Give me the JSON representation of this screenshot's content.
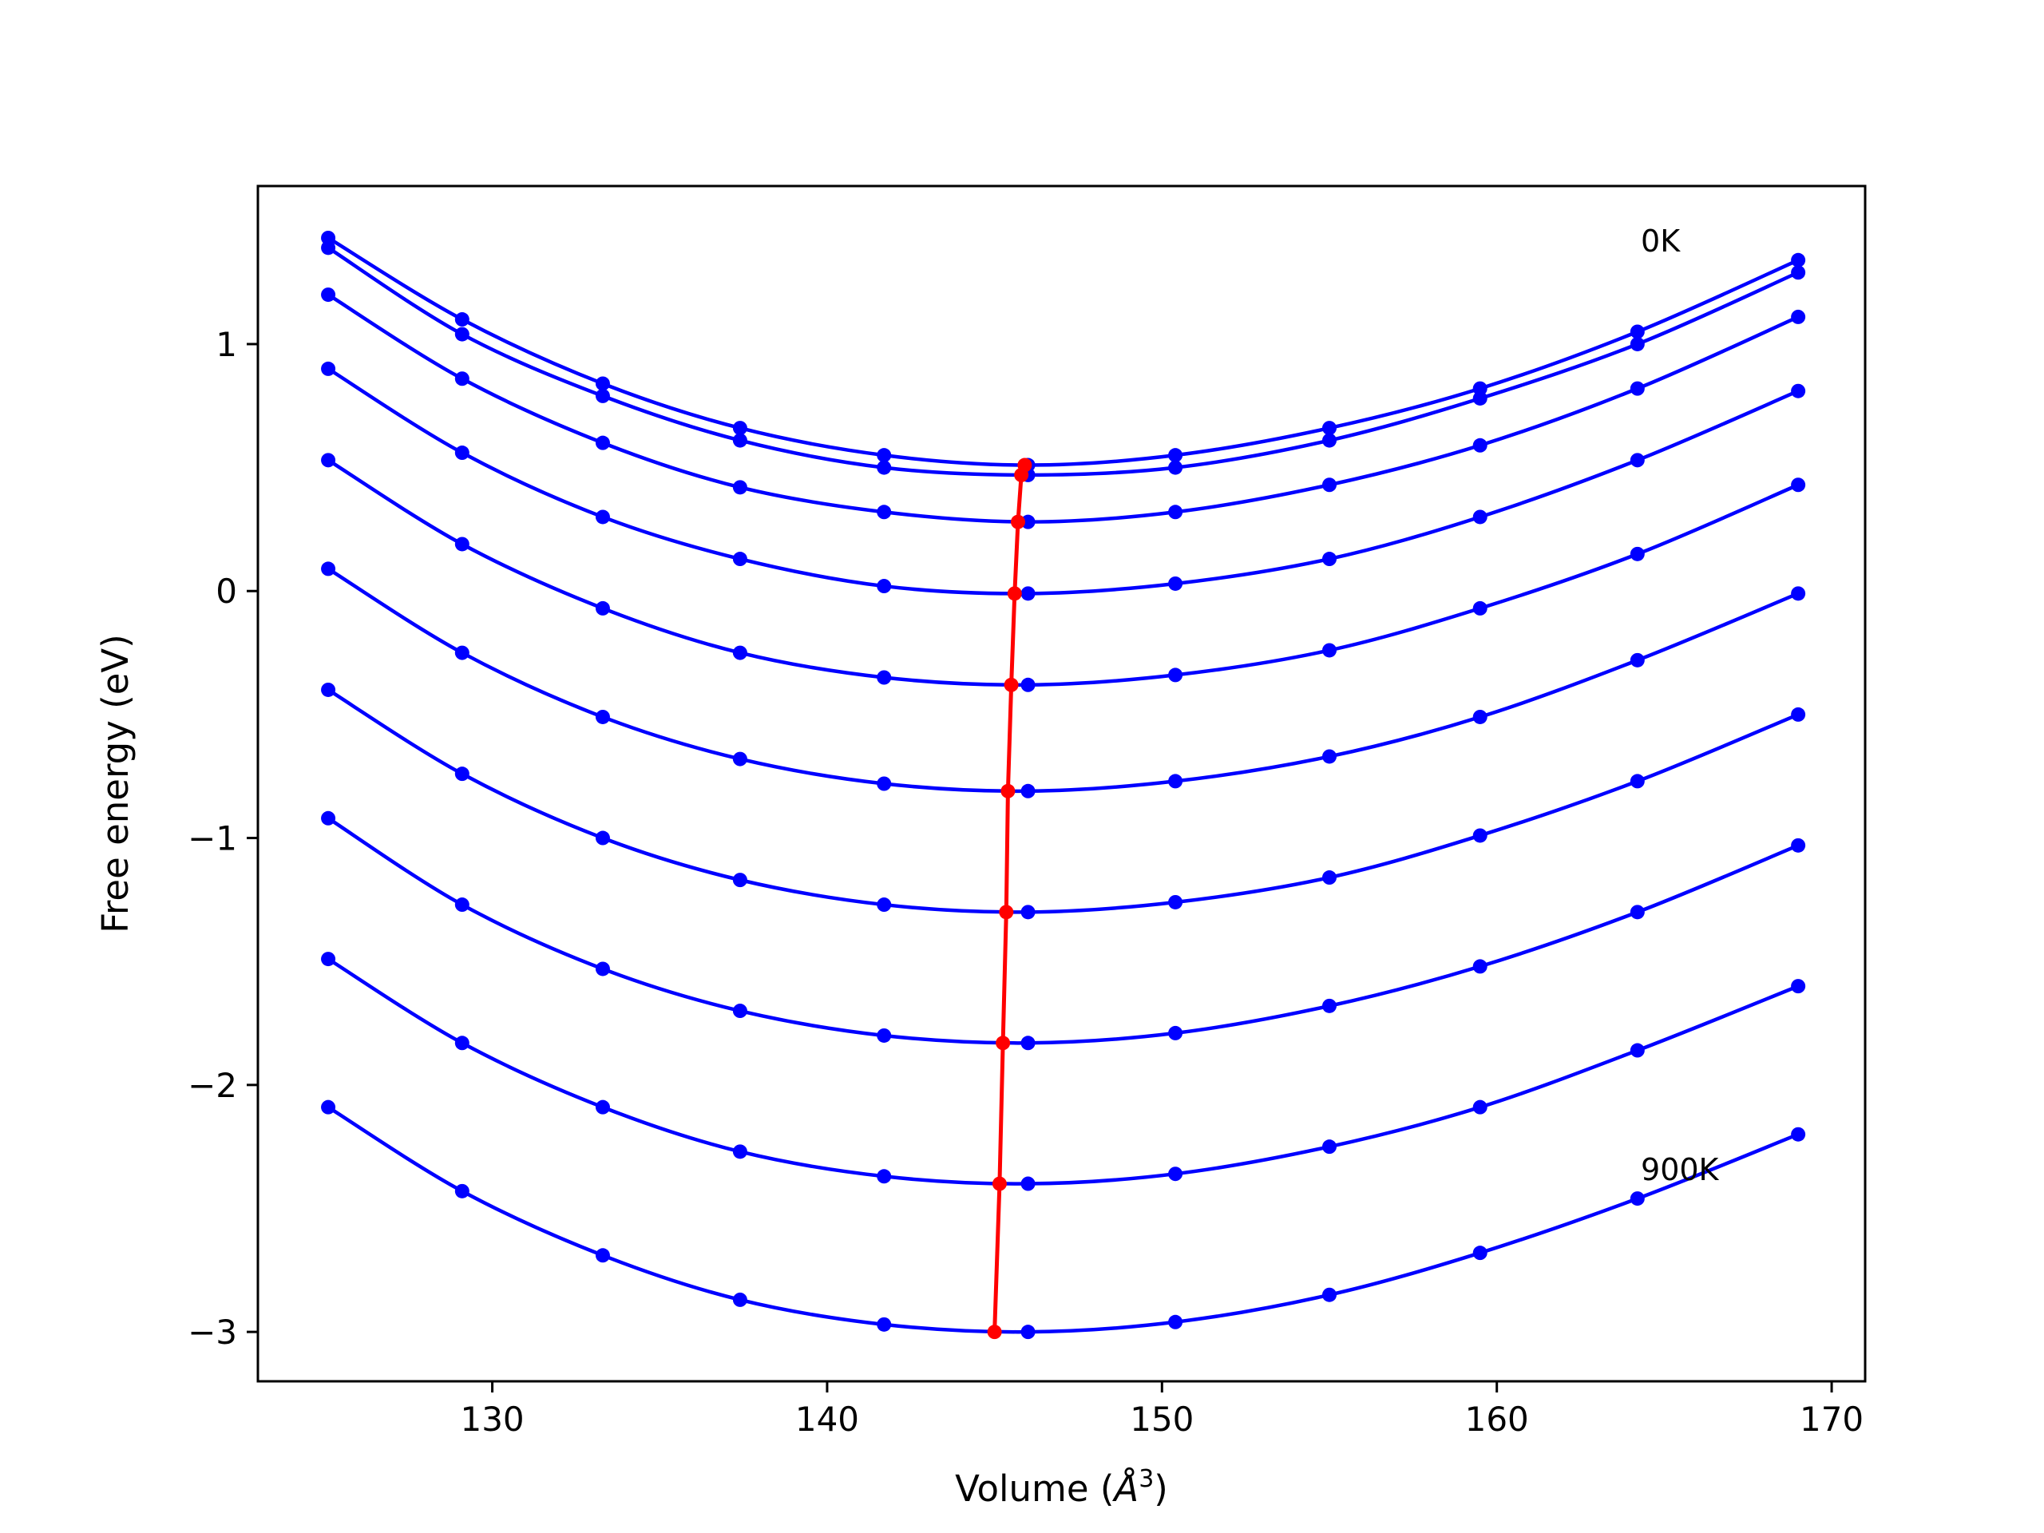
{
  "chart_data": {
    "type": "line",
    "title": "",
    "xlabel": "Volume (",
    "xlabel_unit": "Å",
    "xlabel_exp": "3",
    "xlabel_close": ")",
    "ylabel": "Free energy (eV)",
    "xlim": [
      123,
      171
    ],
    "ylim": [
      -3.2,
      1.64
    ],
    "xticks": [
      130,
      140,
      150,
      160,
      170
    ],
    "yticks": [
      1,
      0,
      -1,
      -2,
      -3
    ],
    "ytick_labels": [
      "1",
      "0",
      "−1",
      "−2",
      "−3"
    ],
    "grid": false,
    "legend": "none",
    "x": [
      125.1,
      129.1,
      133.3,
      137.4,
      141.7,
      146.0,
      150.4,
      155.0,
      159.5,
      164.2,
      169.0
    ],
    "series": [
      {
        "color": "#0000ff",
        "values": [
          1.43,
          1.1,
          0.84,
          0.66,
          0.55,
          0.51,
          0.55,
          0.66,
          0.82,
          1.05,
          1.34
        ]
      },
      {
        "color": "#0000ff",
        "values": [
          1.39,
          1.04,
          0.79,
          0.61,
          0.5,
          0.47,
          0.5,
          0.61,
          0.78,
          1.0,
          1.29
        ]
      },
      {
        "color": "#0000ff",
        "values": [
          1.2,
          0.86,
          0.6,
          0.42,
          0.32,
          0.28,
          0.32,
          0.43,
          0.59,
          0.82,
          1.11
        ]
      },
      {
        "color": "#0000ff",
        "values": [
          0.9,
          0.56,
          0.3,
          0.13,
          0.02,
          -0.01,
          0.03,
          0.13,
          0.3,
          0.53,
          0.81
        ]
      },
      {
        "color": "#0000ff",
        "values": [
          0.53,
          0.19,
          -0.07,
          -0.25,
          -0.35,
          -0.38,
          -0.34,
          -0.24,
          -0.07,
          0.15,
          0.43
        ]
      },
      {
        "color": "#0000ff",
        "values": [
          0.09,
          -0.25,
          -0.51,
          -0.68,
          -0.78,
          -0.81,
          -0.77,
          -0.67,
          -0.51,
          -0.28,
          -0.01
        ]
      },
      {
        "color": "#0000ff",
        "values": [
          -0.4,
          -0.74,
          -1.0,
          -1.17,
          -1.27,
          -1.3,
          -1.26,
          -1.16,
          -0.99,
          -0.77,
          -0.5
        ]
      },
      {
        "color": "#0000ff",
        "values": [
          -0.92,
          -1.27,
          -1.53,
          -1.7,
          -1.8,
          -1.83,
          -1.79,
          -1.68,
          -1.52,
          -1.3,
          -1.03
        ]
      },
      {
        "color": "#0000ff",
        "values": [
          -1.49,
          -1.83,
          -2.09,
          -2.27,
          -2.37,
          -2.4,
          -2.36,
          -2.25,
          -2.09,
          -1.86,
          -1.6
        ]
      },
      {
        "color": "#0000ff",
        "values": [
          -2.09,
          -2.43,
          -2.69,
          -2.87,
          -2.97,
          -3.0,
          -2.96,
          -2.85,
          -2.68,
          -2.46,
          -2.2
        ]
      }
    ],
    "minimum_curve": {
      "color": "#ff0000",
      "x": [
        145.9,
        145.8,
        145.7,
        145.6,
        145.5,
        145.4,
        145.35,
        145.25,
        145.15,
        145.0
      ],
      "y": [
        0.51,
        0.47,
        0.28,
        -0.01,
        -0.38,
        -0.81,
        -1.3,
        -1.83,
        -2.4,
        -3.0
      ]
    },
    "annotations": [
      {
        "text": "0K",
        "x": 164.3,
        "y": 1.42
      },
      {
        "text": "900K",
        "x": 164.3,
        "y": -2.34
      }
    ]
  }
}
